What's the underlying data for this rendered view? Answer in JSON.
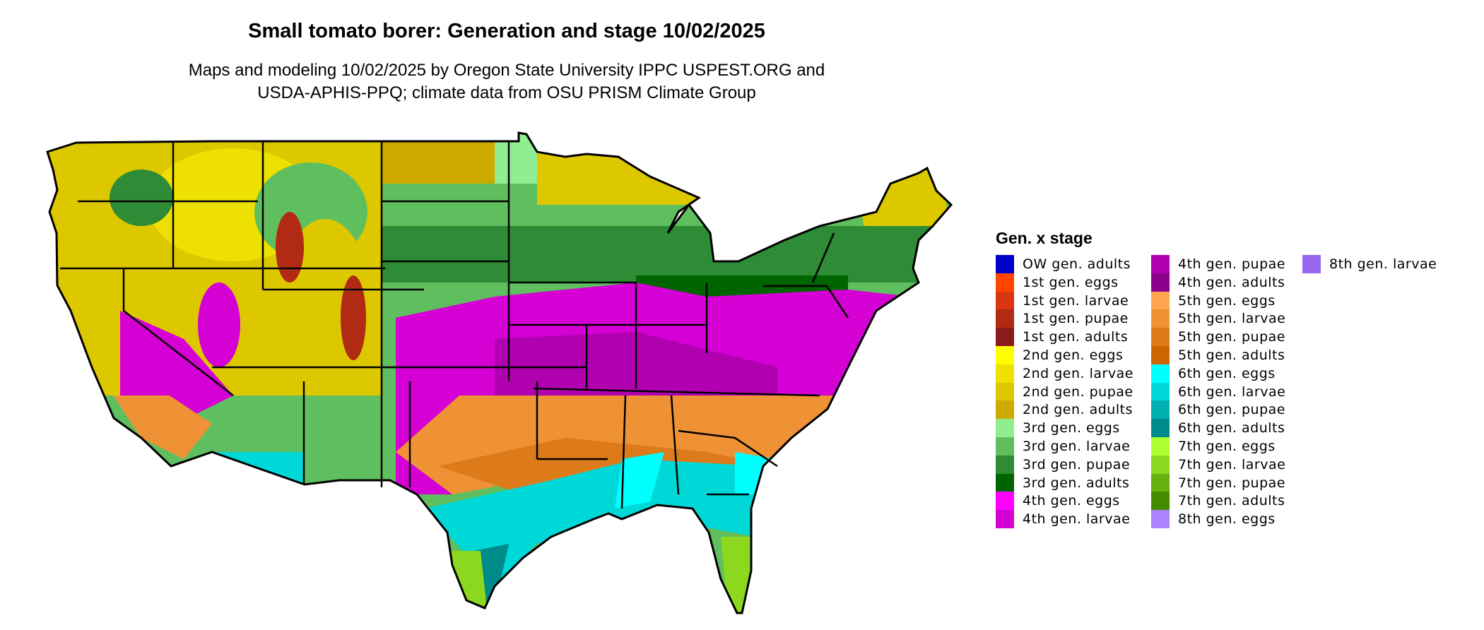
{
  "title": "Small tomato borer: Generation and stage 10/02/2025",
  "subtitle_line1": "Maps and modeling 10/02/2025 by Oregon State University IPPC USPEST.ORG and",
  "subtitle_line2": "USDA-APHIS-PPQ; climate data from OSU PRISM Climate Group",
  "legend": {
    "title": "Gen. x stage",
    "columns": [
      [
        {
          "label": "OW gen. adults",
          "color": "#0000CC"
        },
        {
          "label": "1st gen. eggs",
          "color": "#FF4500"
        },
        {
          "label": "1st gen. larvae",
          "color": "#D83510"
        },
        {
          "label": "1st gen. pupae",
          "color": "#B02A14"
        },
        {
          "label": "1st gen. adults",
          "color": "#8B1A1A"
        },
        {
          "label": "2nd gen. eggs",
          "color": "#FFFF00"
        },
        {
          "label": "2nd gen. larvae",
          "color": "#EEE000"
        },
        {
          "label": "2nd gen. pupae",
          "color": "#DDC800"
        },
        {
          "label": "2nd gen. adults",
          "color": "#CDAA00"
        },
        {
          "label": "3rd gen. eggs",
          "color": "#90EE90"
        },
        {
          "label": "3rd gen. larvae",
          "color": "#5FBF5F"
        },
        {
          "label": "3rd gen. pupae",
          "color": "#2E8B36"
        },
        {
          "label": "3rd gen. adults",
          "color": "#006400"
        },
        {
          "label": "4th gen. eggs",
          "color": "#FF00FF"
        },
        {
          "label": "4th gen. larvae",
          "color": "#D400D4"
        }
      ],
      [
        {
          "label": "4th gen. pupae",
          "color": "#B000B0"
        },
        {
          "label": "4th gen. adults",
          "color": "#8B008B"
        },
        {
          "label": "5th gen. eggs",
          "color": "#FFA54F"
        },
        {
          "label": "5th gen. larvae",
          "color": "#EE9235"
        },
        {
          "label": "5th gen. pupae",
          "color": "#DD7A1A"
        },
        {
          "label": "5th gen. adults",
          "color": "#CD6600"
        },
        {
          "label": "6th gen. eggs",
          "color": "#00FFFF"
        },
        {
          "label": "6th gen. larvae",
          "color": "#00D8D8"
        },
        {
          "label": "6th gen. pupae",
          "color": "#00B0B0"
        },
        {
          "label": "6th gen. adults",
          "color": "#008B8B"
        },
        {
          "label": "7th gen. eggs",
          "color": "#ADFF2F"
        },
        {
          "label": "7th gen. larvae",
          "color": "#8CD81E"
        },
        {
          "label": "7th gen. pupae",
          "color": "#66B010"
        },
        {
          "label": "7th gen. adults",
          "color": "#458B00"
        },
        {
          "label": "8th gen. eggs",
          "color": "#AB82FF"
        }
      ],
      [
        {
          "label": "8th gen. larvae",
          "color": "#9966EE"
        }
      ]
    ]
  }
}
